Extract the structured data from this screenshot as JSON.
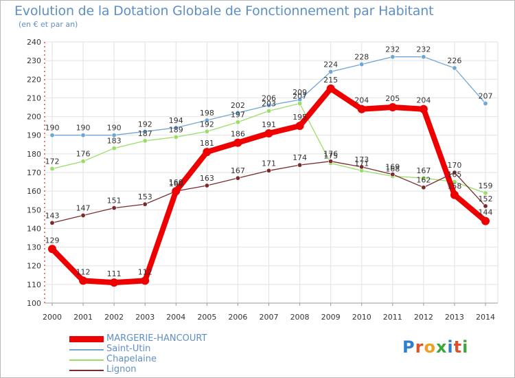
{
  "title": "Evolution de la Dotation Globale de Fonctionnement par Habitant",
  "subtitle": "(en € et par an)",
  "logo": {
    "text": "Proxiti",
    "letter_colors": [
      "#2f7fd0",
      "#e0502a",
      "#f0a020",
      "#3aa83a",
      "#2f7fd0",
      "#e0502a",
      "#3aa83a"
    ]
  },
  "chart_data": {
    "type": "line",
    "x": [
      "2000",
      "2001",
      "2002",
      "2003",
      "2004",
      "2005",
      "2006",
      "2007",
      "2008",
      "2009",
      "2010",
      "2011",
      "2012",
      "2013",
      "2014"
    ],
    "ylim": [
      100,
      240
    ],
    "yticks": [
      "100",
      "110",
      "120",
      "130",
      "140",
      "150",
      "160",
      "170",
      "180",
      "190",
      "200",
      "210",
      "220",
      "230",
      "240"
    ],
    "grid": true,
    "legend_position": "bottom-left",
    "series": [
      {
        "name": "MARGERIE-HANCOURT",
        "color": "#ee0000",
        "emphasis": true,
        "values": [
          129,
          112,
          111,
          112,
          160,
          181,
          186,
          191,
          195,
          215,
          204,
          205,
          204,
          158,
          144
        ]
      },
      {
        "name": "Saint-Utin",
        "color": "#6fa6d6",
        "values": [
          190,
          190,
          190,
          192,
          194,
          198,
          202,
          206,
          209,
          224,
          228,
          232,
          232,
          226,
          207
        ]
      },
      {
        "name": "Chapelaine",
        "color": "#99dd66",
        "values": [
          172,
          176,
          183,
          187,
          189,
          192,
          197,
          203,
          207,
          175,
          171,
          168,
          167,
          165,
          159
        ]
      },
      {
        "name": "Lignon",
        "color": "#7a2a2a",
        "values": [
          143,
          147,
          151,
          153,
          160,
          163,
          167,
          171,
          174,
          176,
          173,
          169,
          162,
          170,
          152
        ]
      }
    ]
  }
}
